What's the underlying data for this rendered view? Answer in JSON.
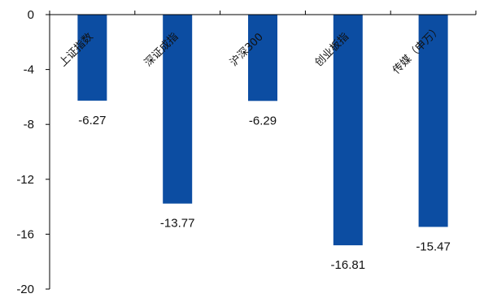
{
  "chart_data": {
    "type": "bar",
    "title": "",
    "xlabel": "",
    "ylabel": "",
    "categories": [
      "上证指数",
      "深证成指",
      "沪深300",
      "创业板指",
      "传媒（申万）"
    ],
    "values": [
      -6.27,
      -13.77,
      -6.29,
      -16.81,
      -15.47
    ],
    "value_labels": [
      "-6.27",
      "-13.77",
      "-6.29",
      "-16.81",
      "-15.47"
    ],
    "ylim": [
      -20,
      0
    ],
    "yticks": [
      0,
      -4,
      -8,
      -12,
      -16,
      -20
    ],
    "ytick_labels": [
      "0",
      "-4",
      "-8",
      "-12",
      "-16",
      "-20"
    ],
    "grid": false,
    "legend": "none",
    "bar_color": "#0C4DA2",
    "axis_color": "#000000"
  }
}
